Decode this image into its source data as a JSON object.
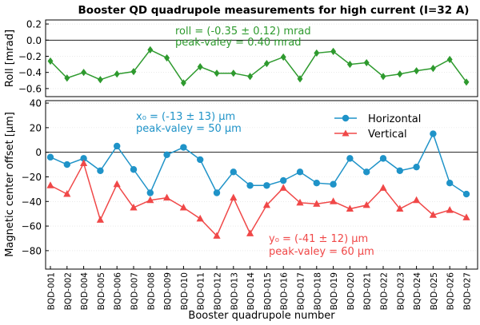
{
  "colors": {
    "roll": "#2e9a2e",
    "horizontal": "#1f93c8",
    "vertical": "#f04848",
    "axis": "#000000",
    "grid": "#dddddd"
  },
  "chart_data": [
    {
      "type": "line",
      "title": "Booster QD quadrupole measurements for high current (I=32 A)",
      "ylabel": "Roll [mrad]",
      "ylim": [
        -0.7,
        0.25
      ],
      "yticks": [
        "0.2",
        "0.0",
        "−0.2",
        "−0.4",
        "−0.6"
      ],
      "ytick_values": [
        0.2,
        0.0,
        -0.2,
        -0.4,
        -0.6
      ],
      "reference_line": 0,
      "grid": true,
      "series": [
        {
          "marker": "diamond",
          "values": [
            -0.26,
            -0.47,
            -0.4,
            -0.49,
            -0.42,
            -0.39,
            -0.12,
            -0.22,
            -0.53,
            -0.33,
            -0.41,
            -0.41,
            -0.45,
            -0.29,
            -0.21,
            -0.48,
            -0.16,
            -0.14,
            -0.3,
            -0.28,
            -0.45,
            -0.42,
            -0.38,
            -0.35,
            -0.24,
            -0.52
          ]
        }
      ],
      "annotations": [
        "roll = (-0.35 ± 0.12) mrad",
        "peak-valey = 0.40 mrad"
      ]
    },
    {
      "type": "line",
      "xlabel": "Booster quadrupole number",
      "ylabel": "Magnetic center offset [μm]",
      "ylim": [
        -95,
        42
      ],
      "yticks": [
        "40",
        "20",
        "0",
        "−20",
        "−40",
        "−60",
        "−80"
      ],
      "ytick_values": [
        40,
        20,
        0,
        -20,
        -40,
        -60,
        -80
      ],
      "reference_line": 0,
      "grid": true,
      "legend": "top-right",
      "categories": [
        "BQD-001",
        "BQD-002",
        "BQD-004",
        "BQD-005",
        "BQD-006",
        "BQD-007",
        "BQD-008",
        "BQD-009",
        "BQD-010",
        "BQD-011",
        "BQD-012",
        "BQD-013",
        "BQD-014",
        "BQD-015",
        "BQD-016",
        "BQD-017",
        "BQD-018",
        "BQD-019",
        "BQD-020",
        "BQD-021",
        "BQD-022",
        "BQD-023",
        "BQD-024",
        "BQD-025",
        "BQD-026",
        "BQD-027"
      ],
      "series": [
        {
          "name": "Horizontal",
          "marker": "circle",
          "values": [
            -4,
            -10,
            -5,
            -15,
            5,
            -14,
            -33,
            -2,
            4,
            -6,
            -33,
            -16,
            -27,
            -27,
            -23,
            -16,
            -25,
            -26,
            -5,
            -16,
            -5,
            -15,
            -12,
            15,
            -25,
            -34
          ]
        },
        {
          "name": "Vertical",
          "marker": "triangle",
          "values": [
            -27,
            -34,
            -9,
            -55,
            -26,
            -45,
            -39,
            -37,
            -45,
            -54,
            -68,
            -37,
            -66,
            -43,
            -29,
            -41,
            -42,
            -40,
            -46,
            -43,
            -29,
            -46,
            -39,
            -51,
            -47,
            -53
          ]
        }
      ],
      "annotations": [
        "x₀ = (-13 ± 13) μm",
        "peak-valey = 50 μm",
        "y₀ = (-41 ± 12) μm",
        "peak-valey = 60 μm"
      ]
    }
  ]
}
